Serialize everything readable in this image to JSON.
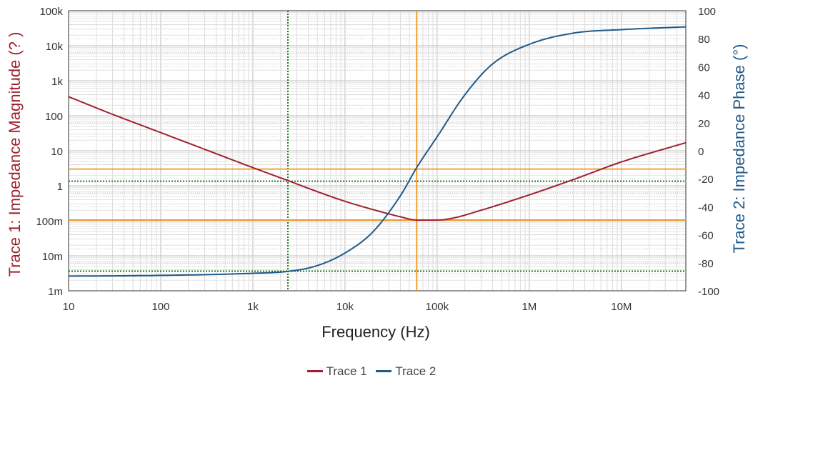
{
  "chart_data": {
    "type": "line",
    "x_axis": {
      "label": "Frequency (Hz)",
      "scale": "log",
      "range": [
        10,
        50000000
      ],
      "ticks": [
        {
          "value": 10,
          "label": "10"
        },
        {
          "value": 100,
          "label": "100"
        },
        {
          "value": 1000,
          "label": "1k"
        },
        {
          "value": 10000,
          "label": "10k"
        },
        {
          "value": 100000,
          "label": "100k"
        },
        {
          "value": 1000000,
          "label": "1M"
        },
        {
          "value": 10000000,
          "label": "10M"
        }
      ]
    },
    "y_left": {
      "label": "Trace 1: Impedance Magnitude (? )",
      "scale": "log",
      "range": [
        0.001,
        100000
      ],
      "ticks": [
        {
          "value": 0.001,
          "label": "1m"
        },
        {
          "value": 0.01,
          "label": "10m"
        },
        {
          "value": 0.1,
          "label": "100m"
        },
        {
          "value": 1,
          "label": "1"
        },
        {
          "value": 10,
          "label": "10"
        },
        {
          "value": 100,
          "label": "100"
        },
        {
          "value": 1000,
          "label": "1k"
        },
        {
          "value": 10000,
          "label": "10k"
        },
        {
          "value": 100000,
          "label": "100k"
        }
      ]
    },
    "y_right": {
      "label": "Trace 2: Impedance Phase (°)",
      "scale": "linear",
      "range": [
        -100,
        100
      ],
      "ticks": [
        {
          "value": 100,
          "label": "100"
        },
        {
          "value": 80,
          "label": "80"
        },
        {
          "value": 60,
          "label": "60"
        },
        {
          "value": 40,
          "label": "40"
        },
        {
          "value": 20,
          "label": "20"
        },
        {
          "value": 0,
          "label": "0"
        },
        {
          "value": -20,
          "label": "-20"
        },
        {
          "value": -40,
          "label": "-40"
        },
        {
          "value": -60,
          "label": "-60"
        },
        {
          "value": -80,
          "label": "-80"
        },
        {
          "value": -100,
          "label": "-100"
        }
      ]
    },
    "series": [
      {
        "name": "Trace 1",
        "axis": "left",
        "color": "#a0212e",
        "x": [
          10,
          30,
          100,
          300,
          1000,
          2500,
          5000,
          10000,
          20000,
          40000,
          60000,
          100000,
          150000,
          300000,
          1000000,
          3000000,
          10000000,
          50000000
        ],
        "y": [
          350,
          110,
          33,
          11,
          3.3,
          1.35,
          0.68,
          0.36,
          0.21,
          0.13,
          0.105,
          0.105,
          0.12,
          0.2,
          0.55,
          1.5,
          4.8,
          17
        ]
      },
      {
        "name": "Trace 2",
        "axis": "right",
        "color": "#1f5a8a",
        "x": [
          10,
          100,
          1000,
          2500,
          5000,
          10000,
          20000,
          40000,
          60000,
          100000,
          200000,
          400000,
          1000000,
          3000000,
          10000000,
          50000000
        ],
        "y": [
          -89.5,
          -89,
          -87.5,
          -86,
          -82,
          -73,
          -58,
          -32,
          -12,
          10,
          40,
          62,
          76,
          84,
          86.5,
          88.5
        ]
      }
    ],
    "cursors": [
      {
        "axis": "x",
        "value": 2400,
        "color": "#1f7a1f",
        "style": "dotted"
      },
      {
        "axis": "y_left",
        "value": 1.35,
        "color": "#1f7a1f",
        "style": "dotted"
      },
      {
        "axis": "y_right",
        "value": -86,
        "color": "#1f7a1f",
        "style": "dotted"
      },
      {
        "axis": "x",
        "value": 60000,
        "color": "#f0961e",
        "style": "solid"
      },
      {
        "axis": "y_left",
        "value": 3.0,
        "color": "#f0961e",
        "style": "solid"
      },
      {
        "axis": "y_left",
        "value": 0.105,
        "color": "#f0961e",
        "style": "solid"
      }
    ],
    "grid": true,
    "legend_position": "bottom"
  }
}
